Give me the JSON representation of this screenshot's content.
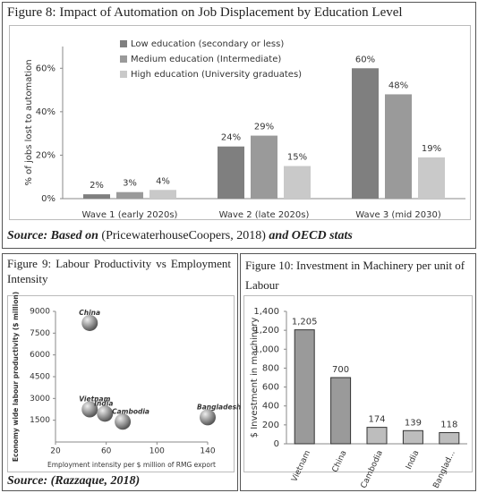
{
  "chart_data": [
    {
      "type": "bar",
      "title": "Figure 8: Impact of Automation on Job Displacement by Education Level",
      "y_label": "% of jobs lost to automation",
      "categories": [
        "Wave 1 (early 2020s)",
        "Wave 2 (late 2020s)",
        "Wave 3 (mid 2030)"
      ],
      "series": [
        {
          "name": "Low education (secondary or less)",
          "color": "#7f7f7f",
          "values": [
            2,
            24,
            60
          ],
          "value_labels": [
            "2%",
            "24%",
            "60%"
          ]
        },
        {
          "name": "Medium education (Intermediate)",
          "color": "#9a9a9a",
          "values": [
            3,
            29,
            48
          ],
          "value_labels": [
            "3%",
            "29%",
            "48%"
          ]
        },
        {
          "name": "High education (University graduates)",
          "color": "#c9c9c9",
          "values": [
            4,
            15,
            19
          ],
          "value_labels": [
            "4%",
            "15%",
            "19%"
          ]
        }
      ],
      "ylim": [
        0,
        70
      ],
      "yticks": [
        {
          "value": 0,
          "label": "0%"
        },
        {
          "value": 20,
          "label": "20%"
        },
        {
          "value": 40,
          "label": "40%"
        },
        {
          "value": 60,
          "label": "60%"
        }
      ],
      "legend": "top-left"
    },
    {
      "type": "scatter",
      "title": "Figure 9: Labour Productivity vs Employment Intensity",
      "x_label": "Employment intensity per $ million of RMG export",
      "y_label": "Economy wide labour productivity ($ million)",
      "labels": [
        "China",
        "Vietnam",
        "India",
        "Cambodia",
        "Bangladesh"
      ],
      "x": [
        47,
        47,
        59,
        73,
        140
      ],
      "values": [
        8200,
        2250,
        1950,
        1400,
        1700
      ],
      "color": "#555555",
      "xlim": [
        20,
        140
      ],
      "xticks": [
        20,
        60,
        100,
        140
      ],
      "ylim": [
        0,
        9000
      ],
      "yticks": [
        1500,
        3000,
        4500,
        6000,
        7500,
        9000
      ]
    },
    {
      "type": "bar",
      "title": "Figure 10: Investment in Machinery per unit of Labour",
      "y_label": "$ Investment in machinery",
      "categories": [
        "Vietnam",
        "China",
        "Cambodia",
        "India",
        "Banglad..."
      ],
      "values": [
        1205,
        700,
        174,
        139,
        118
      ],
      "value_labels": [
        "1,205",
        "700",
        "174",
        "139",
        "118"
      ],
      "colors": [
        "#9a9a9a",
        "#9a9a9a",
        "#bdbdbd",
        "#bdbdbd",
        "#bdbdbd"
      ],
      "ylim": [
        0,
        1400
      ],
      "yticks": [
        0,
        200,
        400,
        600,
        800,
        {
          "value": 1000,
          "label": "1,000"
        },
        {
          "value": 1200,
          "label": "1,200"
        },
        {
          "value": 1400,
          "label": "1,400"
        }
      ]
    }
  ],
  "sources": [
    [
      {
        "text": "Source: Based on",
        "emphasis": true
      },
      {
        "text": "(PricewaterhouseCoopers, 2018)",
        "emphasis": false
      },
      {
        "text": "and OECD stats",
        "emphasis": true
      }
    ],
    [
      {
        "text": "Source:",
        "emphasis": true
      },
      {
        "text": "(Razzaque, 2018)",
        "emphasis": true
      }
    ]
  ]
}
